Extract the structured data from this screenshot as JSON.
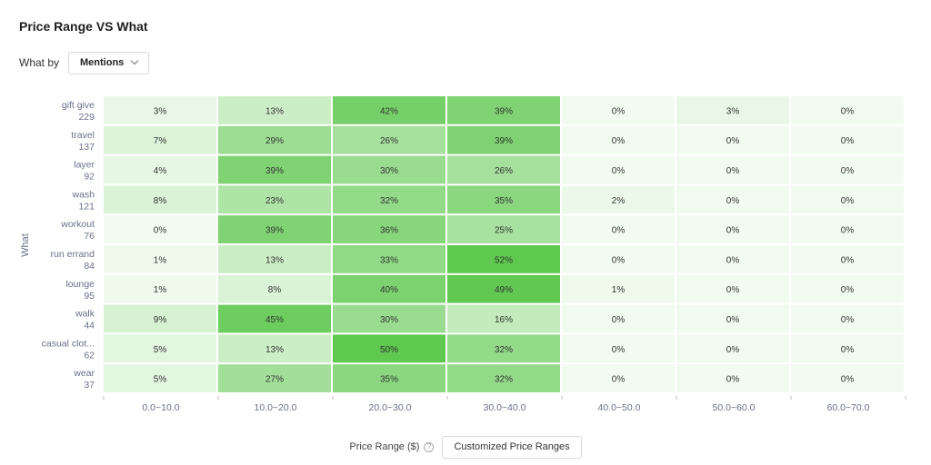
{
  "header": {
    "title": "Price Range VS What",
    "what_by_label": "What by",
    "what_by_value": "Mentions"
  },
  "footer": {
    "x_axis_title": "Price Range ($)",
    "help_glyph": "?",
    "custom_button": "Customized Price Ranges"
  },
  "chart_data": {
    "type": "heatmap",
    "title": "Price Range VS What",
    "xlabel": "Price Range ($)",
    "ylabel": "What",
    "x": [
      "0.0~10.0",
      "10.0~20.0",
      "20.0~30.0",
      "30.0~40.0",
      "40.0~50.0",
      "50.0~60.0",
      "60.0~70.0"
    ],
    "rows": [
      {
        "label": "gift give",
        "count": "229",
        "values": [
          3,
          13,
          42,
          39,
          0,
          3,
          0
        ]
      },
      {
        "label": "travel",
        "count": "137",
        "values": [
          7,
          29,
          26,
          39,
          0,
          0,
          0
        ]
      },
      {
        "label": "layer",
        "count": "92",
        "values": [
          4,
          39,
          30,
          26,
          0,
          0,
          0
        ]
      },
      {
        "label": "wash",
        "count": "121",
        "values": [
          8,
          23,
          32,
          35,
          2,
          0,
          0
        ]
      },
      {
        "label": "workout",
        "count": "76",
        "values": [
          0,
          39,
          36,
          25,
          0,
          0,
          0
        ]
      },
      {
        "label": "run errand",
        "count": "84",
        "values": [
          1,
          13,
          33,
          52,
          0,
          0,
          0
        ]
      },
      {
        "label": "lounge",
        "count": "95",
        "values": [
          1,
          8,
          40,
          49,
          1,
          0,
          0
        ]
      },
      {
        "label": "walk",
        "count": "44",
        "values": [
          9,
          45,
          30,
          16,
          0,
          0,
          0
        ]
      },
      {
        "label": "casual clot...",
        "count": "62",
        "values": [
          5,
          13,
          50,
          32,
          0,
          0,
          0
        ]
      },
      {
        "label": "wear",
        "count": "37",
        "values": [
          5,
          27,
          35,
          32,
          0,
          0,
          0
        ]
      }
    ],
    "value_suffix": "%",
    "colors": {
      "low": "#f2fbf0",
      "high": "#5ec84f"
    }
  }
}
